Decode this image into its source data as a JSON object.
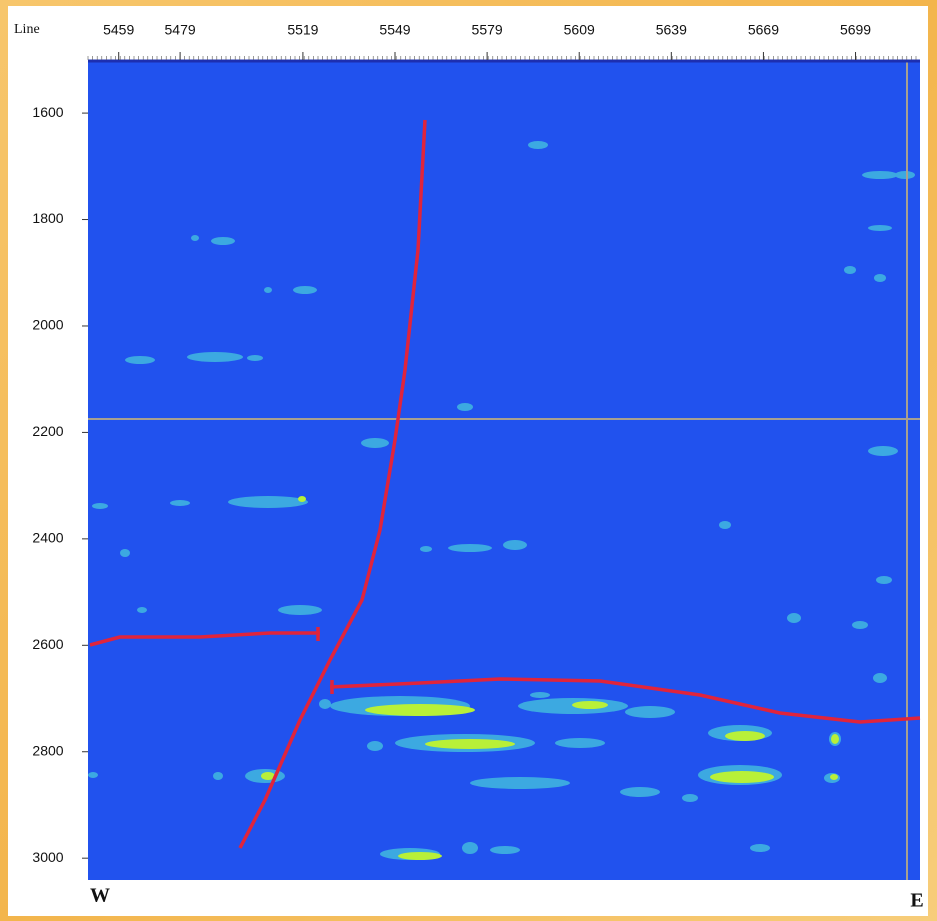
{
  "chart_data": {
    "type": "seismic",
    "corner_label": "Line",
    "left_label": "W",
    "right_label": "E",
    "xlim": [
      5449,
      5720
    ],
    "xticks": [
      5459,
      5479,
      5519,
      5549,
      5579,
      5609,
      5639,
      5669,
      5699
    ],
    "ylim": [
      1504,
      3041
    ],
    "y_inverted": true,
    "yticks": [
      1600,
      1800,
      2000,
      2200,
      2400,
      2600,
      2800,
      3000
    ],
    "background_color": "#2152ee"
  }
}
